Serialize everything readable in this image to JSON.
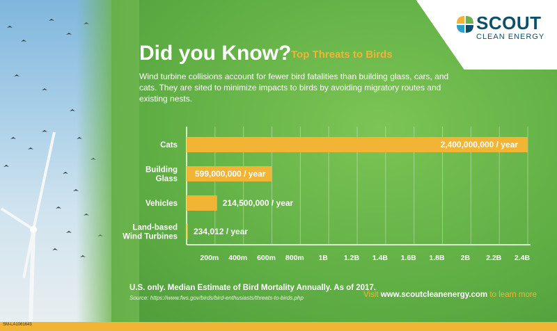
{
  "header": {
    "headline": "Did you Know?",
    "subhead": "Top Threats to Birds",
    "intro": "Wind turbine collisions account for fewer bird fatalities than building glass, cars, and cats. They are sited to minimize impacts to birds by avoiding migratory routes and existing nests."
  },
  "logo": {
    "name": "SCOUT",
    "tagline": "CLEAN ENERGY"
  },
  "chart_data": {
    "type": "bar",
    "orientation": "horizontal",
    "categories": [
      [
        "Cats"
      ],
      [
        "Building",
        "Glass"
      ],
      [
        "Vehicles"
      ],
      [
        "Land-based",
        "Wind Turbines"
      ]
    ],
    "values": [
      2400000000,
      599000000,
      214500000,
      234012
    ],
    "data_labels": [
      "2,400,000,000 / year",
      "599,000,000 / year",
      "214,500,000 / year",
      "234,012 / year"
    ],
    "xlim": [
      0,
      2400000000
    ],
    "ticks": [
      200000000,
      400000000,
      600000000,
      800000000,
      1000000000,
      1200000000,
      1400000000,
      1600000000,
      1800000000,
      2000000000,
      2200000000,
      2400000000
    ],
    "tick_labels": [
      "200m",
      "400m",
      "600m",
      "800m",
      "1B",
      "1.2B",
      "1.4B",
      "1.6B",
      "1.8B",
      "2B",
      "2.2B",
      "2.4B"
    ],
    "grid": true,
    "bar_color": "#f1b434",
    "title": "",
    "xlabel": "",
    "ylabel": ""
  },
  "footer": {
    "note": "U.S. only. Median Estimate of Bird Mortality Annually. As of 2017.",
    "source": "Source: https://www.fws.gov/birds/bird-enthusiasts/threats-to-birds.php",
    "visit_pre": "Visit",
    "visit_url": "www.scoutcleanenergy.com",
    "visit_post": "to learn more",
    "code": "SM-LA1061643"
  }
}
